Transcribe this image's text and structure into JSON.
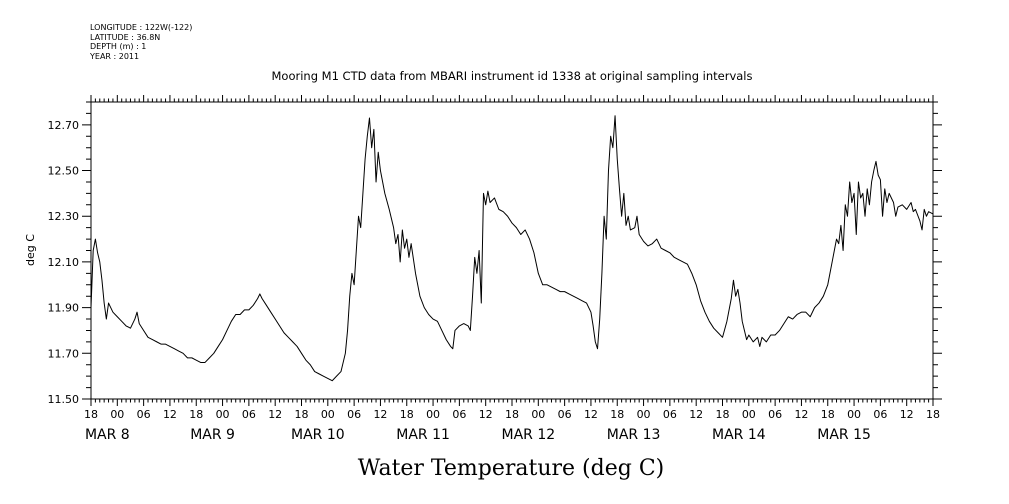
{
  "header": {
    "meta_lines": [
      "LONGITUDE : 122W(-122)",
      "LATITUDE : 36.8N",
      "DEPTH (m) : 1",
      "YEAR : 2011"
    ],
    "title": "Mooring M1 CTD data from MBARI instrument id 1338 at original sampling intervals"
  },
  "axes": {
    "ylabel": "deg C",
    "y_tick_labels": [
      "11.50",
      "11.70",
      "11.90",
      "12.10",
      "12.30",
      "12.50",
      "12.70"
    ],
    "hour_labels": [
      "18",
      "00",
      "06",
      "12",
      "18",
      "00",
      "06",
      "12",
      "18",
      "00",
      "06",
      "12",
      "18",
      "00",
      "06",
      "12",
      "18",
      "00",
      "06",
      "12",
      "18",
      "00",
      "06",
      "12",
      "18",
      "00",
      "06",
      "12",
      "18",
      "00",
      "06",
      "12",
      "18"
    ],
    "day_labels": [
      "MAR 8",
      "MAR 9",
      "MAR 10",
      "MAR 11",
      "MAR 12",
      "MAR 13",
      "MAR 14",
      "MAR 15"
    ]
  },
  "footer": {
    "caption": "Water Temperature (deg C)"
  },
  "chart_data": {
    "type": "line",
    "title": "Mooring M1 CTD data from MBARI instrument id 1338 at original sampling intervals",
    "xlabel": "",
    "ylabel": "deg C",
    "caption": "Water Temperature (deg C)",
    "x_unit": "hours since MAR 7 18:00, 2011",
    "x_range": [
      0,
      192
    ],
    "ylim": [
      11.5,
      12.8
    ],
    "series": [
      {
        "name": "Water Temperature (deg C)",
        "points": [
          [
            0,
            11.9
          ],
          [
            0.5,
            12.15
          ],
          [
            1,
            12.2
          ],
          [
            1.5,
            12.14
          ],
          [
            2,
            12.1
          ],
          [
            2.5,
            12.02
          ],
          [
            3,
            11.92
          ],
          [
            3.5,
            11.85
          ],
          [
            4,
            11.92
          ],
          [
            5,
            11.88
          ],
          [
            6,
            11.86
          ],
          [
            7,
            11.84
          ],
          [
            8,
            11.82
          ],
          [
            9,
            11.81
          ],
          [
            10,
            11.85
          ],
          [
            10.5,
            11.88
          ],
          [
            11,
            11.83
          ],
          [
            12,
            11.8
          ],
          [
            13,
            11.77
          ],
          [
            14,
            11.76
          ],
          [
            15,
            11.75
          ],
          [
            16,
            11.74
          ],
          [
            17,
            11.74
          ],
          [
            18,
            11.73
          ],
          [
            19,
            11.72
          ],
          [
            20,
            11.71
          ],
          [
            21,
            11.7
          ],
          [
            22,
            11.68
          ],
          [
            23,
            11.68
          ],
          [
            24,
            11.67
          ],
          [
            25,
            11.66
          ],
          [
            26,
            11.66
          ],
          [
            27,
            11.68
          ],
          [
            28,
            11.7
          ],
          [
            29,
            11.73
          ],
          [
            30,
            11.76
          ],
          [
            31,
            11.8
          ],
          [
            32,
            11.84
          ],
          [
            33,
            11.87
          ],
          [
            34,
            11.87
          ],
          [
            35,
            11.89
          ],
          [
            36,
            11.89
          ],
          [
            37,
            11.91
          ],
          [
            38,
            11.94
          ],
          [
            38.5,
            11.96
          ],
          [
            39,
            11.94
          ],
          [
            40,
            11.91
          ],
          [
            41,
            11.88
          ],
          [
            42,
            11.85
          ],
          [
            43,
            11.82
          ],
          [
            44,
            11.79
          ],
          [
            45,
            11.77
          ],
          [
            46,
            11.75
          ],
          [
            47,
            11.73
          ],
          [
            48,
            11.7
          ],
          [
            49,
            11.67
          ],
          [
            50,
            11.65
          ],
          [
            51,
            11.62
          ],
          [
            52,
            11.61
          ],
          [
            53,
            11.6
          ],
          [
            54,
            11.59
          ],
          [
            55,
            11.58
          ],
          [
            56,
            11.6
          ],
          [
            57,
            11.62
          ],
          [
            58,
            11.7
          ],
          [
            58.5,
            11.8
          ],
          [
            59,
            11.95
          ],
          [
            59.5,
            12.05
          ],
          [
            60,
            12.0
          ],
          [
            60.5,
            12.15
          ],
          [
            61,
            12.3
          ],
          [
            61.5,
            12.25
          ],
          [
            62,
            12.4
          ],
          [
            62.5,
            12.55
          ],
          [
            63,
            12.65
          ],
          [
            63.5,
            12.73
          ],
          [
            64,
            12.6
          ],
          [
            64.5,
            12.68
          ],
          [
            65,
            12.45
          ],
          [
            65.5,
            12.58
          ],
          [
            66,
            12.5
          ],
          [
            67,
            12.4
          ],
          [
            68,
            12.33
          ],
          [
            69,
            12.25
          ],
          [
            69.5,
            12.18
          ],
          [
            70,
            12.22
          ],
          [
            70.5,
            12.1
          ],
          [
            71,
            12.24
          ],
          [
            71.5,
            12.16
          ],
          [
            72,
            12.2
          ],
          [
            72.5,
            12.12
          ],
          [
            73,
            12.18
          ],
          [
            74,
            12.05
          ],
          [
            75,
            11.95
          ],
          [
            76,
            11.9
          ],
          [
            77,
            11.87
          ],
          [
            78,
            11.85
          ],
          [
            79,
            11.84
          ],
          [
            80,
            11.8
          ],
          [
            81,
            11.76
          ],
          [
            82,
            11.73
          ],
          [
            82.5,
            11.72
          ],
          [
            83,
            11.8
          ],
          [
            84,
            11.82
          ],
          [
            85,
            11.83
          ],
          [
            86,
            11.82
          ],
          [
            86.5,
            11.8
          ],
          [
            87,
            11.95
          ],
          [
            87.5,
            12.12
          ],
          [
            88,
            12.05
          ],
          [
            88.5,
            12.15
          ],
          [
            89,
            11.92
          ],
          [
            89.5,
            12.4
          ],
          [
            90,
            12.35
          ],
          [
            90.5,
            12.41
          ],
          [
            91,
            12.36
          ],
          [
            92,
            12.38
          ],
          [
            93,
            12.33
          ],
          [
            94,
            12.32
          ],
          [
            95,
            12.3
          ],
          [
            96,
            12.27
          ],
          [
            97,
            12.25
          ],
          [
            98,
            12.22
          ],
          [
            99,
            12.24
          ],
          [
            100,
            12.2
          ],
          [
            101,
            12.14
          ],
          [
            102,
            12.05
          ],
          [
            103,
            12.0
          ],
          [
            104,
            12.0
          ],
          [
            105,
            11.99
          ],
          [
            106,
            11.98
          ],
          [
            107,
            11.97
          ],
          [
            108,
            11.97
          ],
          [
            109,
            11.96
          ],
          [
            110,
            11.95
          ],
          [
            111,
            11.94
          ],
          [
            112,
            11.93
          ],
          [
            113,
            11.92
          ],
          [
            114,
            11.88
          ],
          [
            114.5,
            11.82
          ],
          [
            115,
            11.75
          ],
          [
            115.5,
            11.72
          ],
          [
            116,
            11.85
          ],
          [
            116.5,
            12.05
          ],
          [
            117,
            12.3
          ],
          [
            117.5,
            12.2
          ],
          [
            118,
            12.5
          ],
          [
            118.5,
            12.65
          ],
          [
            119,
            12.6
          ],
          [
            119.5,
            12.74
          ],
          [
            120,
            12.55
          ],
          [
            120.5,
            12.42
          ],
          [
            121,
            12.3
          ],
          [
            121.5,
            12.4
          ],
          [
            122,
            12.26
          ],
          [
            122.5,
            12.3
          ],
          [
            123,
            12.24
          ],
          [
            124,
            12.25
          ],
          [
            124.5,
            12.3
          ],
          [
            125,
            12.22
          ],
          [
            126,
            12.19
          ],
          [
            127,
            12.17
          ],
          [
            128,
            12.18
          ],
          [
            129,
            12.2
          ],
          [
            130,
            12.16
          ],
          [
            131,
            12.15
          ],
          [
            132,
            12.14
          ],
          [
            133,
            12.12
          ],
          [
            134,
            12.11
          ],
          [
            135,
            12.1
          ],
          [
            136,
            12.09
          ],
          [
            137,
            12.05
          ],
          [
            138,
            12.0
          ],
          [
            139,
            11.93
          ],
          [
            140,
            11.88
          ],
          [
            141,
            11.84
          ],
          [
            142,
            11.81
          ],
          [
            143,
            11.79
          ],
          [
            144,
            11.77
          ],
          [
            145,
            11.84
          ],
          [
            146,
            11.94
          ],
          [
            146.5,
            12.02
          ],
          [
            147,
            11.95
          ],
          [
            147.5,
            11.98
          ],
          [
            148,
            11.92
          ],
          [
            148.5,
            11.84
          ],
          [
            149,
            11.8
          ],
          [
            149.5,
            11.76
          ],
          [
            150,
            11.78
          ],
          [
            151,
            11.75
          ],
          [
            152,
            11.77
          ],
          [
            152.5,
            11.73
          ],
          [
            153,
            11.77
          ],
          [
            154,
            11.75
          ],
          [
            155,
            11.78
          ],
          [
            156,
            11.78
          ],
          [
            157,
            11.8
          ],
          [
            158,
            11.83
          ],
          [
            159,
            11.86
          ],
          [
            160,
            11.85
          ],
          [
            161,
            11.87
          ],
          [
            162,
            11.88
          ],
          [
            163,
            11.88
          ],
          [
            164,
            11.86
          ],
          [
            165,
            11.9
          ],
          [
            166,
            11.92
          ],
          [
            167,
            11.95
          ],
          [
            168,
            12.0
          ],
          [
            168.5,
            12.05
          ],
          [
            169,
            12.1
          ],
          [
            169.5,
            12.15
          ],
          [
            170,
            12.2
          ],
          [
            170.5,
            12.18
          ],
          [
            171,
            12.26
          ],
          [
            171.5,
            12.15
          ],
          [
            172,
            12.35
          ],
          [
            172.5,
            12.3
          ],
          [
            173,
            12.45
          ],
          [
            173.5,
            12.36
          ],
          [
            174,
            12.4
          ],
          [
            174.5,
            12.22
          ],
          [
            175,
            12.45
          ],
          [
            175.5,
            12.38
          ],
          [
            176,
            12.4
          ],
          [
            176.5,
            12.3
          ],
          [
            177,
            12.42
          ],
          [
            177.5,
            12.35
          ],
          [
            178,
            12.45
          ],
          [
            178.5,
            12.5
          ],
          [
            179,
            12.54
          ],
          [
            179.5,
            12.48
          ],
          [
            180,
            12.46
          ],
          [
            180.5,
            12.3
          ],
          [
            181,
            12.42
          ],
          [
            181.5,
            12.36
          ],
          [
            182,
            12.4
          ],
          [
            183,
            12.36
          ],
          [
            183.5,
            12.3
          ],
          [
            184,
            12.34
          ],
          [
            185,
            12.35
          ],
          [
            186,
            12.33
          ],
          [
            187,
            12.36
          ],
          [
            187.5,
            12.32
          ],
          [
            188,
            12.33
          ],
          [
            189,
            12.28
          ],
          [
            189.5,
            12.24
          ],
          [
            190,
            12.33
          ],
          [
            190.5,
            12.3
          ],
          [
            191,
            12.32
          ],
          [
            192,
            12.31
          ]
        ]
      }
    ]
  }
}
